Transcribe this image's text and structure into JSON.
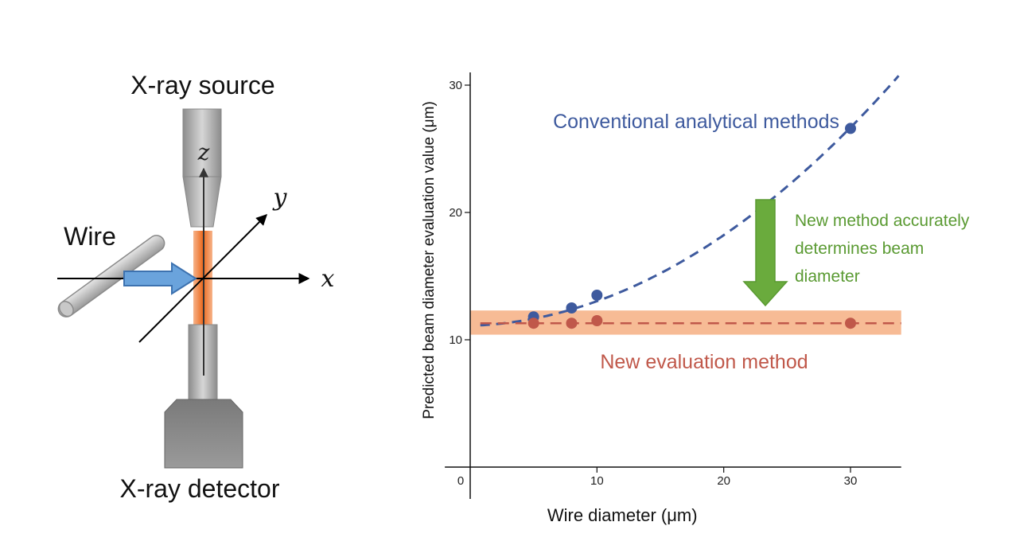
{
  "schematic": {
    "source_label": "X-ray source",
    "detector_label": "X-ray detector",
    "wire_label": "Wire",
    "axis_x": "x",
    "axis_y": "y",
    "axis_z": "z",
    "colors": {
      "beam": "#f08a3e",
      "arrow": "#5b9bd5",
      "metal": "#a0a0a0"
    }
  },
  "chart_data": {
    "type": "scatter",
    "xlabel": "Wire diameter (μm)",
    "ylabel": "Predicted beam diameter evaluation value (μm)",
    "xlim": [
      -2,
      34
    ],
    "ylim": [
      0,
      31
    ],
    "x_ticks": [
      0,
      10,
      20,
      30
    ],
    "y_ticks": [
      10,
      20,
      30
    ],
    "series": [
      {
        "name": "Conventional analytical methods",
        "color": "#3e5a9e",
        "points": [
          [
            5,
            11.8
          ],
          [
            8,
            12.5
          ],
          [
            10,
            13.5
          ],
          [
            30,
            26.6
          ]
        ],
        "fit": "dashed curve"
      },
      {
        "name": "New evaluation method",
        "color": "#c0584a",
        "points": [
          [
            5,
            11.3
          ],
          [
            8,
            11.3
          ],
          [
            10,
            11.5
          ],
          [
            30,
            11.3
          ]
        ],
        "fit": "dashed line",
        "band": [
          10.4,
          12.3
        ],
        "band_color": "#f6b48a"
      }
    ],
    "annotation": {
      "text_lines": [
        "New method accurately",
        "determines beam",
        "diameter"
      ],
      "color": "#5a9a32",
      "arrow_from_y": 21,
      "arrow_to_y": 13
    }
  }
}
